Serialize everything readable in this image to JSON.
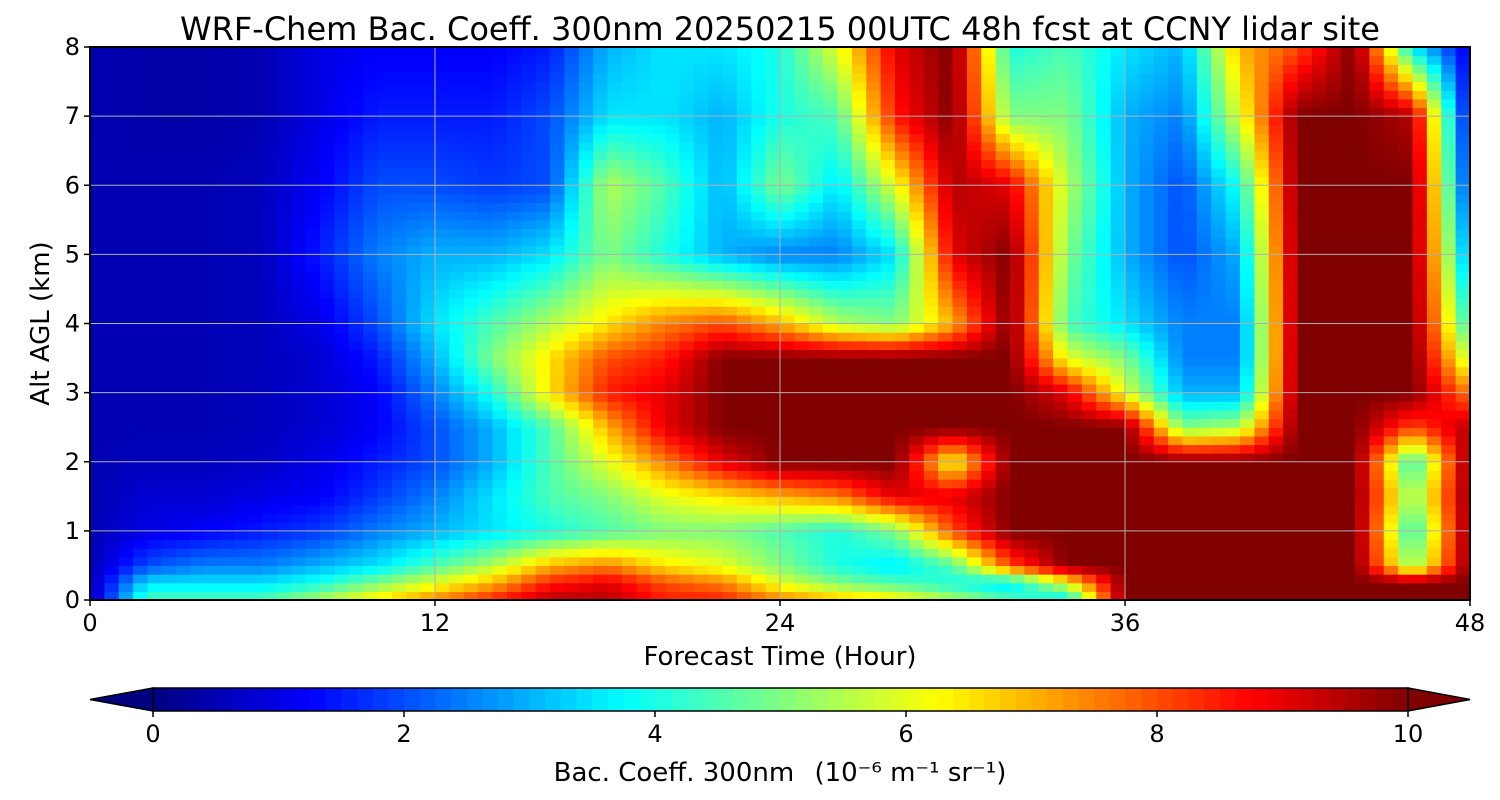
{
  "chart_data": {
    "type": "heatmap",
    "title": "WRF-Chem Bac. Coeff. 300nm  20250215 00UTC 48h fcst at CCNY lidar site",
    "xlabel": "Forecast Time (Hour)",
    "ylabel": "Alt AGL (km)",
    "xlim": [
      0,
      48
    ],
    "ylim": [
      0,
      8
    ],
    "x_ticks": [
      "0",
      "12",
      "24",
      "36",
      "48"
    ],
    "y_ticks": [
      "0",
      "1",
      "2",
      "3",
      "4",
      "5",
      "6",
      "7",
      "8"
    ],
    "grid": true,
    "colormap": "jet",
    "colorbar": {
      "orientation": "horizontal",
      "placement": "bottom",
      "extend": "both",
      "min": 0,
      "max": 10,
      "ticks": [
        "0",
        "2",
        "4",
        "6",
        "8",
        "10"
      ],
      "label": "Bac. Coeff. 300nm",
      "units": "(10⁻⁶ m⁻¹ sr⁻¹)"
    },
    "time_hours": [
      0,
      2,
      4,
      6,
      8,
      10,
      12,
      14,
      16,
      18,
      20,
      22,
      24,
      26,
      28,
      30,
      32,
      34,
      36,
      38,
      40,
      42,
      44,
      46,
      48
    ],
    "altitude_km": [
      0,
      0.25,
      0.5,
      1,
      1.5,
      2,
      2.5,
      3,
      3.5,
      4,
      5,
      6,
      7,
      8
    ],
    "values": [
      [
        0.5,
        4.5,
        4.5,
        4.5,
        5.5,
        6.5,
        7.5,
        8.5,
        9.5,
        9.5,
        8.5,
        8.5,
        7.5,
        7.0,
        6.5,
        5.5,
        4.5,
        3.5,
        10,
        10,
        10,
        10,
        10,
        10,
        10
      ],
      [
        0.5,
        3.5,
        3.5,
        3.5,
        4.0,
        5.0,
        6.0,
        7.0,
        8.5,
        9.0,
        8.0,
        7.5,
        6.0,
        5.0,
        4.5,
        4.0,
        3.5,
        6.0,
        10,
        10,
        10,
        10,
        10,
        10,
        10
      ],
      [
        0.5,
        2.0,
        2.5,
        2.5,
        3.0,
        3.5,
        4.5,
        5.5,
        7.0,
        7.5,
        6.5,
        6.0,
        5.0,
        4.0,
        3.5,
        4.5,
        8.0,
        10,
        10,
        10,
        10,
        10,
        10,
        5.0,
        10
      ],
      [
        0.5,
        1.0,
        1.2,
        1.5,
        1.8,
        2.5,
        3.0,
        3.5,
        4.0,
        4.5,
        5.0,
        5.0,
        4.5,
        4.0,
        5.0,
        8.0,
        10,
        10,
        10,
        10,
        10,
        10,
        10,
        4.0,
        10
      ],
      [
        0.5,
        0.8,
        0.8,
        1.0,
        1.2,
        1.8,
        2.5,
        3.5,
        4.5,
        5.0,
        6.0,
        6.5,
        7.0,
        7.5,
        9.0,
        9.0,
        10,
        10,
        10,
        10,
        10,
        10,
        10,
        5.0,
        10
      ],
      [
        0.5,
        0.6,
        0.6,
        0.7,
        1.0,
        1.5,
        2.0,
        3.0,
        4.5,
        6.0,
        7.5,
        9.0,
        10,
        10,
        10,
        6.0,
        10,
        10,
        10,
        10,
        10,
        10,
        10,
        4.0,
        10
      ],
      [
        0.5,
        0.5,
        0.5,
        0.6,
        0.8,
        1.2,
        2.0,
        3.0,
        4.5,
        7.0,
        9.0,
        10,
        10,
        10,
        10,
        10,
        10,
        10,
        10,
        5.0,
        5.5,
        10,
        10,
        8.0,
        9.5
      ],
      [
        0.5,
        0.5,
        0.5,
        0.6,
        0.8,
        1.2,
        2.5,
        4.0,
        6.5,
        8.5,
        9.0,
        10,
        10,
        10,
        10,
        10,
        10,
        9.0,
        6.0,
        3.0,
        3.0,
        10,
        10,
        10,
        7.5
      ],
      [
        0.5,
        0.5,
        0.5,
        0.6,
        0.8,
        1.5,
        3.0,
        5.0,
        6.5,
        8.0,
        8.5,
        10,
        10,
        10,
        10,
        10,
        10,
        6.0,
        5.0,
        2.5,
        2.5,
        10,
        10,
        10,
        5.5
      ],
      [
        0.5,
        0.5,
        0.5,
        0.6,
        1.0,
        2.0,
        3.5,
        4.5,
        5.5,
        6.5,
        7.5,
        8.0,
        7.0,
        5.5,
        5.0,
        7.0,
        10,
        4.5,
        3.5,
        2.5,
        2.5,
        10,
        10,
        10,
        4.0
      ],
      [
        0.5,
        0.5,
        0.5,
        0.6,
        1.5,
        2.5,
        3.0,
        3.0,
        3.5,
        5.0,
        4.0,
        3.0,
        2.5,
        2.5,
        3.5,
        9.0,
        10,
        5.0,
        3.0,
        2.0,
        3.0,
        10,
        10,
        10,
        2.5
      ],
      [
        0.5,
        0.5,
        0.5,
        0.6,
        1.2,
        2.0,
        2.0,
        1.8,
        2.0,
        5.5,
        4.5,
        3.0,
        5.0,
        3.5,
        6.0,
        9.5,
        9.0,
        5.5,
        3.0,
        2.0,
        4.0,
        10,
        10,
        10,
        1.5
      ],
      [
        0.5,
        0.4,
        0.4,
        0.5,
        1.0,
        1.5,
        1.5,
        1.5,
        2.0,
        3.5,
        3.5,
        3.0,
        4.0,
        4.5,
        8.5,
        10,
        5.0,
        5.0,
        3.0,
        2.5,
        6.0,
        10,
        10,
        9.5,
        1.0
      ],
      [
        0.5,
        0.4,
        0.4,
        0.5,
        1.0,
        1.2,
        1.2,
        1.2,
        1.5,
        3.0,
        3.5,
        3.5,
        4.0,
        6.0,
        9.0,
        10,
        4.0,
        4.5,
        3.5,
        3.0,
        7.0,
        8.0,
        10,
        3.5,
        1.0
      ]
    ]
  }
}
